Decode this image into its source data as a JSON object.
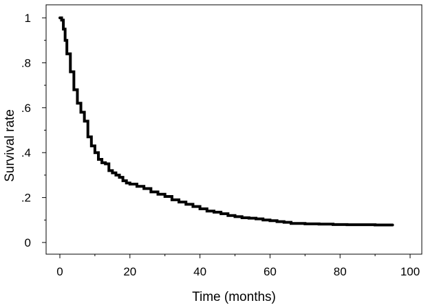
{
  "chart_data": {
    "type": "line",
    "step": true,
    "xlabel": "Time  (months)",
    "ylabel": "Survival rate",
    "xlim": [
      0,
      100
    ],
    "ylim": [
      0,
      1
    ],
    "x_ticks": [
      0,
      20,
      40,
      60,
      80,
      100
    ],
    "y_ticks": [
      0,
      0.2,
      0.4,
      0.6,
      0.8,
      1
    ],
    "y_tick_labels": [
      "0",
      ".2",
      ".4",
      ".6",
      ".8",
      "1"
    ],
    "x_tick_labels": [
      "0",
      "20",
      "40",
      "60",
      "80",
      "100"
    ],
    "grid": false,
    "line_color": "#000000",
    "series": [
      {
        "x": [
          0,
          0.5,
          1,
          1.5,
          2,
          3,
          4,
          5,
          6,
          7,
          8,
          9,
          10,
          11,
          12,
          13,
          14,
          15,
          16,
          17,
          18,
          19,
          20,
          22,
          24,
          26,
          28,
          30,
          32,
          34,
          36,
          38,
          40,
          42,
          44,
          46,
          48,
          50,
          52,
          54,
          56,
          58,
          60,
          62,
          64,
          66,
          70,
          74,
          78,
          82,
          86,
          90,
          95
        ],
        "y": [
          1.0,
          0.99,
          0.95,
          0.9,
          0.84,
          0.76,
          0.68,
          0.62,
          0.58,
          0.54,
          0.47,
          0.43,
          0.4,
          0.37,
          0.355,
          0.35,
          0.32,
          0.31,
          0.3,
          0.29,
          0.275,
          0.265,
          0.26,
          0.25,
          0.24,
          0.225,
          0.215,
          0.205,
          0.19,
          0.18,
          0.17,
          0.16,
          0.15,
          0.14,
          0.135,
          0.128,
          0.12,
          0.115,
          0.11,
          0.108,
          0.105,
          0.1,
          0.097,
          0.093,
          0.09,
          0.085,
          0.083,
          0.082,
          0.08,
          0.079,
          0.079,
          0.078,
          0.078
        ]
      }
    ]
  }
}
